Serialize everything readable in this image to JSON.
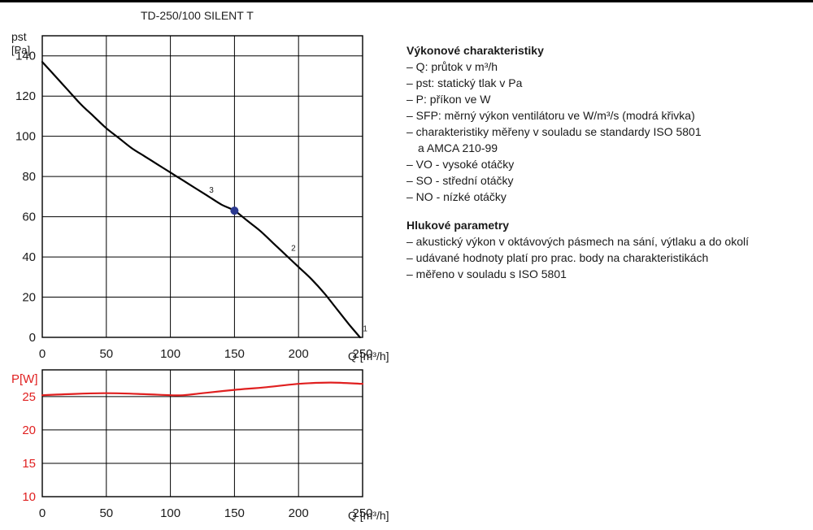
{
  "title": "TD-250/100 SILENT T",
  "chart_data": [
    {
      "type": "line",
      "name": "pressure-chart",
      "ylabel_top": "pst",
      "ylabel_unit": "[Pa]",
      "xlabel": "Q [m³/h]",
      "xlim": [
        0,
        250
      ],
      "ylim": [
        0,
        150
      ],
      "xticks": [
        0,
        50,
        100,
        150,
        200,
        250
      ],
      "yticks": [
        0,
        20,
        40,
        60,
        80,
        100,
        120,
        140
      ],
      "grid": true,
      "series": [
        {
          "name": "pst",
          "color": "#000000",
          "x": [
            0,
            10,
            20,
            30,
            40,
            50,
            60,
            70,
            80,
            90,
            100,
            110,
            120,
            130,
            140,
            150,
            160,
            170,
            180,
            190,
            200,
            210,
            220,
            230,
            240,
            248
          ],
          "y": [
            137,
            130,
            123,
            116,
            110,
            104,
            99,
            94,
            90,
            86,
            82,
            78,
            74,
            70,
            66,
            63,
            58,
            53,
            47,
            41,
            35,
            29,
            22,
            14,
            6,
            0
          ]
        }
      ],
      "operating_point": {
        "x": 150,
        "y": 63,
        "color": "#2b3990"
      },
      "curve_labels": [
        {
          "text": "3",
          "x": 132,
          "y": 72
        },
        {
          "text": "2",
          "x": 196,
          "y": 43
        },
        {
          "text": "1",
          "x": 252,
          "y": 3
        }
      ]
    },
    {
      "type": "line",
      "name": "power-chart",
      "ylabel_top": "P[W]",
      "xlabel": "Q [m³/h]",
      "xlim": [
        0,
        250
      ],
      "ylim": [
        10,
        29
      ],
      "xticks": [
        0,
        50,
        100,
        150,
        200,
        250
      ],
      "yticks": [
        10,
        15,
        20,
        25
      ],
      "grid": true,
      "series": [
        {
          "name": "P",
          "color": "#e02020",
          "x": [
            0,
            25,
            50,
            75,
            100,
            110,
            125,
            150,
            175,
            200,
            225,
            250
          ],
          "y": [
            25.2,
            25.4,
            25.5,
            25.4,
            25.2,
            25.2,
            25.5,
            26.0,
            26.4,
            26.9,
            27.1,
            26.9
          ]
        }
      ]
    }
  ],
  "legend": {
    "performance_title": "Výkonové charakteristiky",
    "performance_items": [
      "– Q: průtok v m³/h",
      "– pst: statický tlak v Pa",
      "– P: příkon ve W",
      "– SFP: měrný výkon ventilátoru ve W/m³/s (modrá křivka)",
      "– charakteristiky měřeny v souladu se standardy ISO 5801",
      "   a AMCA 210-99",
      "– VO - vysoké otáčky",
      "– SO - střední otáčky",
      "– NO - nízké otáčky"
    ],
    "noise_title": "Hlukové parametry",
    "noise_items": [
      "– akustický výkon v oktávových pásmech na sání, výtlaku a do okolí",
      "– udávané hodnoty platí pro prac. body na charakteristikách",
      "– měřeno v souladu s ISO 5801"
    ]
  }
}
